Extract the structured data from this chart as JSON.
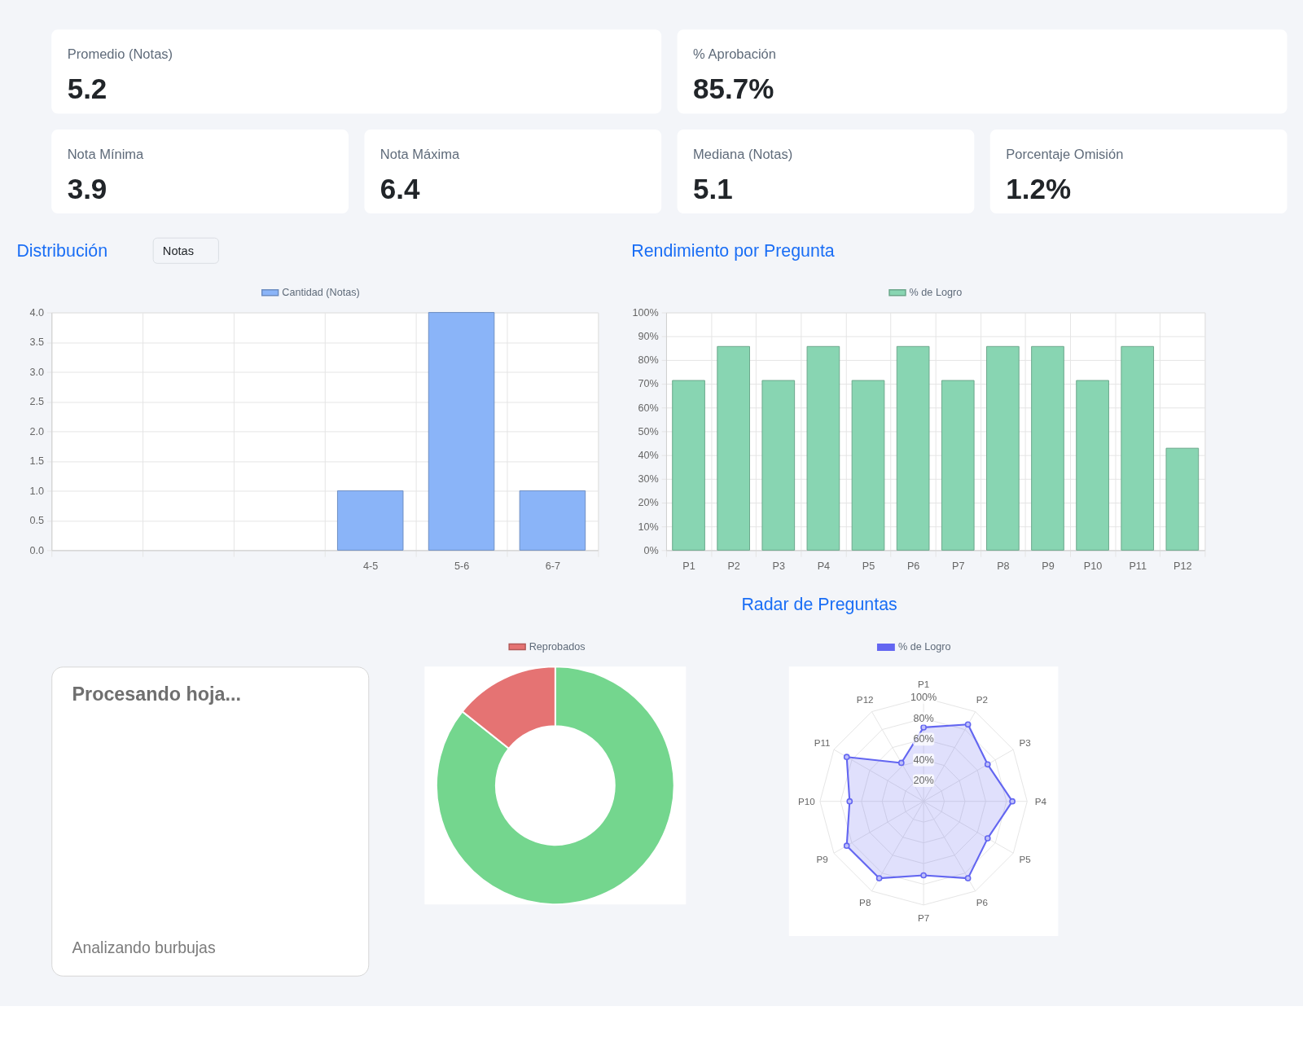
{
  "chart_data": [
    {
      "type": "other",
      "annotations": [
        "Promedio (Notas)",
        "5.2",
        "% Aprobación",
        "85.7%",
        "Nota Mínima",
        "3.9",
        "Nota Máxima",
        "6.4",
        "Mediana (Notas)",
        "5.1",
        "Porcentaje Omisión",
        "1.2%"
      ]
    },
    {
      "type": "bar",
      "title": "Distribución",
      "annotations": [
        "Notas"
      ],
      "categories": [
        null,
        null,
        null,
        "4-5",
        "5-6",
        "6-7"
      ],
      "series": [
        {
          "name": "Cantidad (Notas)",
          "color": "#8ab4f8",
          "values": [
            null,
            null,
            null,
            1,
            4,
            1
          ]
        }
      ],
      "ylim": [
        0,
        4
      ],
      "yticks": [
        {
          "value": 0,
          "label": "0.0"
        },
        {
          "value": 0.5,
          "label": "0.5"
        },
        {
          "value": 1,
          "label": "1.0"
        },
        {
          "value": 1.5,
          "label": "1.5"
        },
        {
          "value": 2,
          "label": "2.0"
        },
        {
          "value": 2.5,
          "label": "2.5"
        },
        {
          "value": 3,
          "label": "3.0"
        },
        {
          "value": 3.5,
          "label": "3.5"
        },
        {
          "value": 4,
          "label": "4.0"
        }
      ],
      "grid": true,
      "legend": "top"
    },
    {
      "type": "bar",
      "title": "Rendimiento por Pregunta",
      "categories": [
        "P1",
        "P2",
        "P3",
        "P4",
        "P5",
        "P6",
        "P7",
        "P8",
        "P9",
        "P10",
        "P11",
        "P12"
      ],
      "series": [
        {
          "name": "% de Logro",
          "color": "#88d5b2",
          "values": [
            71.4,
            85.7,
            71.4,
            85.7,
            71.4,
            85.7,
            71.4,
            85.7,
            85.7,
            71.4,
            85.7,
            42.9
          ]
        }
      ],
      "ylim": [
        0,
        100
      ],
      "yticks": [
        {
          "value": 0,
          "label": "0%"
        },
        {
          "value": 10,
          "label": "10%"
        },
        {
          "value": 20,
          "label": "20%"
        },
        {
          "value": 30,
          "label": "30%"
        },
        {
          "value": 40,
          "label": "40%"
        },
        {
          "value": 50,
          "label": "50%"
        },
        {
          "value": 60,
          "label": "60%"
        },
        {
          "value": 70,
          "label": "70%"
        },
        {
          "value": 80,
          "label": "80%"
        },
        {
          "value": 90,
          "label": "90%"
        },
        {
          "value": 100,
          "label": "100%"
        }
      ],
      "grid": true,
      "legend": "top"
    },
    {
      "type": "other",
      "title": "Procesando hoja...",
      "annotations": [
        "Analizando burbujas"
      ]
    },
    {
      "type": "donut",
      "categories": [
        null,
        "Reprobados"
      ],
      "values": [
        85.7,
        14.3
      ],
      "colors": [
        "#74d68e",
        "#e57373"
      ],
      "legend": "top"
    },
    {
      "type": "radar",
      "title": "Radar de Preguntas",
      "categories": [
        "P1",
        "P2",
        "P3",
        "P4",
        "P5",
        "P6",
        "P7",
        "P8",
        "P9",
        "P10",
        "P11",
        "P12"
      ],
      "series": [
        {
          "name": "% de Logro",
          "color": "#6366f1",
          "values": [
            71.4,
            85.7,
            71.4,
            85.7,
            71.4,
            85.7,
            71.4,
            85.7,
            85.7,
            71.4,
            85.7,
            42.9
          ]
        }
      ],
      "ylim": [
        0,
        100
      ],
      "yticks": [
        {
          "value": 20,
          "label": "20%"
        },
        {
          "value": 40,
          "label": "40%"
        },
        {
          "value": 60,
          "label": "60%"
        },
        {
          "value": 80,
          "label": "80%"
        },
        {
          "value": 100,
          "label": "100%"
        }
      ],
      "grid": true,
      "legend": "top",
      "marker": "circle"
    }
  ]
}
